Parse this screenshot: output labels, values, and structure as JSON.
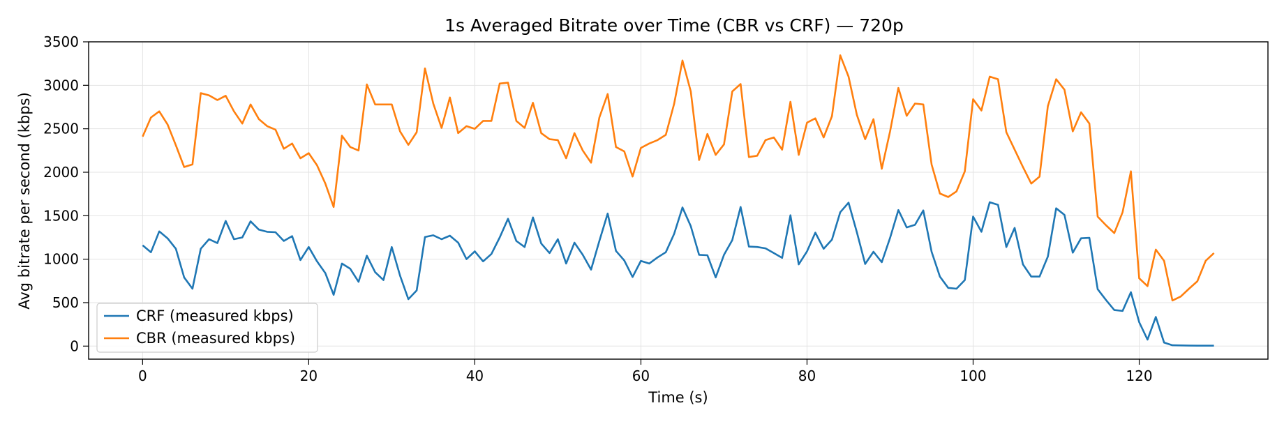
{
  "chart_data": {
    "type": "line",
    "title": "1s Averaged Bitrate over Time (CBR vs CRF) — 720p",
    "xlabel": "Time (s)",
    "ylabel": "Avg bitrate per second (kbps)",
    "xlim": [
      -6.5,
      135.5
    ],
    "ylim": [
      -150,
      3500
    ],
    "xticks": [
      0,
      20,
      40,
      60,
      80,
      100,
      120
    ],
    "yticks": [
      0,
      500,
      1000,
      1500,
      2000,
      2500,
      3000,
      3500
    ],
    "grid": true,
    "legend_position": "lower-left",
    "series": [
      {
        "name": "CRF (measured kbps)",
        "color": "#1f77b4",
        "x": [
          0,
          1,
          2,
          3,
          4,
          5,
          6,
          7,
          8,
          9,
          10,
          11,
          12,
          13,
          14,
          15,
          16,
          17,
          18,
          19,
          20,
          21,
          22,
          23,
          24,
          25,
          26,
          27,
          28,
          29,
          30,
          31,
          32,
          33,
          34,
          35,
          36,
          37,
          38,
          39,
          40,
          41,
          42,
          43,
          44,
          45,
          46,
          47,
          48,
          49,
          50,
          51,
          52,
          53,
          54,
          55,
          56,
          57,
          58,
          59,
          60,
          61,
          62,
          63,
          64,
          65,
          66,
          67,
          68,
          69,
          70,
          71,
          72,
          73,
          74,
          75,
          76,
          77,
          78,
          79,
          80,
          81,
          82,
          83,
          84,
          85,
          86,
          87,
          88,
          89,
          90,
          91,
          92,
          93,
          94,
          95,
          96,
          97,
          98,
          99,
          100,
          101,
          102,
          103,
          104,
          105,
          106,
          107,
          108,
          109,
          110,
          111,
          112,
          113,
          114,
          115,
          116,
          117,
          118,
          119,
          120,
          121,
          122,
          123,
          124,
          125,
          126,
          127,
          128,
          129
        ],
        "values": [
          1160,
          1080,
          1320,
          1240,
          1120,
          790,
          660,
          1120,
          1230,
          1185,
          1440,
          1230,
          1250,
          1435,
          1340,
          1315,
          1310,
          1210,
          1265,
          990,
          1140,
          975,
          840,
          590,
          950,
          890,
          740,
          1040,
          850,
          760,
          1140,
          810,
          540,
          640,
          1255,
          1275,
          1230,
          1270,
          1190,
          1000,
          1090,
          975,
          1060,
          1250,
          1465,
          1210,
          1140,
          1480,
          1180,
          1070,
          1230,
          950,
          1190,
          1050,
          880,
          1210,
          1525,
          1095,
          985,
          795,
          980,
          950,
          1020,
          1080,
          1290,
          1595,
          1380,
          1050,
          1045,
          790,
          1050,
          1220,
          1600,
          1145,
          1140,
          1125,
          1070,
          1015,
          1505,
          940,
          1090,
          1305,
          1120,
          1225,
          1540,
          1650,
          1310,
          945,
          1085,
          965,
          1245,
          1565,
          1365,
          1395,
          1560,
          1085,
          800,
          670,
          660,
          760,
          1490,
          1315,
          1655,
          1625,
          1140,
          1360,
          940,
          800,
          800,
          1030,
          1585,
          1510,
          1075,
          1240,
          1245,
          655,
          530,
          415,
          405,
          620,
          275,
          75,
          335,
          40,
          10,
          8,
          6,
          5,
          5,
          5
        ]
      },
      {
        "name": "CBR (measured kbps)",
        "color": "#ff7f0e",
        "x": [
          0,
          1,
          2,
          3,
          4,
          5,
          6,
          7,
          8,
          9,
          10,
          11,
          12,
          13,
          14,
          15,
          16,
          17,
          18,
          19,
          20,
          21,
          22,
          23,
          24,
          25,
          26,
          27,
          28,
          29,
          30,
          31,
          32,
          33,
          34,
          35,
          36,
          37,
          38,
          39,
          40,
          41,
          42,
          43,
          44,
          45,
          46,
          47,
          48,
          49,
          50,
          51,
          52,
          53,
          54,
          55,
          56,
          57,
          58,
          59,
          60,
          61,
          62,
          63,
          64,
          65,
          66,
          67,
          68,
          69,
          70,
          71,
          72,
          73,
          74,
          75,
          76,
          77,
          78,
          79,
          80,
          81,
          82,
          83,
          84,
          85,
          86,
          87,
          88,
          89,
          90,
          91,
          92,
          93,
          94,
          95,
          96,
          97,
          98,
          99,
          100,
          101,
          102,
          103,
          104,
          105,
          106,
          107,
          108,
          109,
          110,
          111,
          112,
          113,
          114,
          115,
          116,
          117,
          118,
          119,
          120,
          121,
          122,
          123,
          124,
          125,
          126,
          127,
          128,
          129
        ],
        "values": [
          2410,
          2630,
          2700,
          2550,
          2310,
          2060,
          2090,
          2910,
          2885,
          2830,
          2880,
          2700,
          2560,
          2780,
          2610,
          2530,
          2490,
          2270,
          2330,
          2160,
          2220,
          2080,
          1870,
          1600,
          2420,
          2290,
          2250,
          3010,
          2780,
          2780,
          2780,
          2470,
          2315,
          2460,
          3195,
          2790,
          2510,
          2860,
          2450,
          2530,
          2500,
          2590,
          2590,
          3020,
          3030,
          2590,
          2510,
          2800,
          2450,
          2380,
          2370,
          2160,
          2450,
          2250,
          2110,
          2630,
          2900,
          2290,
          2240,
          1950,
          2280,
          2330,
          2370,
          2430,
          2785,
          3285,
          2930,
          2140,
          2440,
          2200,
          2320,
          2930,
          3015,
          2175,
          2190,
          2370,
          2400,
          2260,
          2810,
          2200,
          2570,
          2620,
          2400,
          2645,
          3345,
          3100,
          2660,
          2380,
          2610,
          2040,
          2470,
          2970,
          2650,
          2790,
          2780,
          2090,
          1755,
          1715,
          1780,
          2010,
          2840,
          2710,
          3100,
          3070,
          2460,
          2260,
          2060,
          1870,
          1950,
          2760,
          3070,
          2950,
          2470,
          2690,
          2560,
          1490,
          1390,
          1300,
          1540,
          2010,
          780,
          690,
          1110,
          980,
          525,
          570,
          660,
          745,
          980,
          1070
        ]
      }
    ]
  }
}
